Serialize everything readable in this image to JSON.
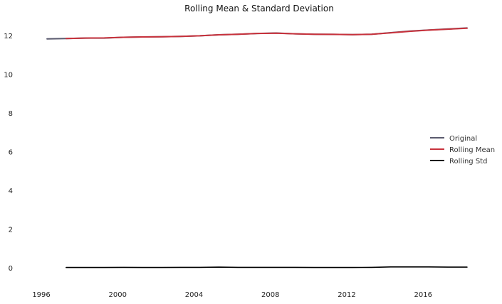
{
  "chart_data": {
    "type": "line",
    "title": "Rolling Mean & Standard Deviation",
    "xlabel": "",
    "ylabel": "",
    "xlim": [
      1995.7,
      2018.9
    ],
    "ylim": [
      -0.7,
      12.8
    ],
    "xticks": [
      1996,
      2000,
      2004,
      2008,
      2012,
      2016
    ],
    "xtick_labels": [
      "1996",
      "2000",
      "2004",
      "2008",
      "2012",
      "2016"
    ],
    "yticks": [
      0,
      2,
      4,
      6,
      8,
      10,
      12
    ],
    "ytick_labels": [
      "0",
      "2",
      "4",
      "6",
      "8",
      "10",
      "12"
    ],
    "grid": false,
    "legend_position": "center-right",
    "series": [
      {
        "name": "Original",
        "color": "#5a5a6e",
        "x": [
          1996.3,
          1997.3,
          1998.3,
          1999.3,
          2000.3,
          2001.3,
          2002.3,
          2003.3,
          2004.3,
          2005.3,
          2006.3,
          2007.3,
          2008.3,
          2009.3,
          2010.3,
          2011.3,
          2012.3,
          2013.3,
          2014.3,
          2015.3,
          2016.3,
          2017.3,
          2018.3
        ],
        "y": [
          11.82,
          11.84,
          11.86,
          11.86,
          11.9,
          11.92,
          11.93,
          11.95,
          11.98,
          12.03,
          12.06,
          12.1,
          12.12,
          12.08,
          12.06,
          12.05,
          12.04,
          12.06,
          12.14,
          12.22,
          12.28,
          12.33,
          12.38
        ]
      },
      {
        "name": "Rolling Mean",
        "color": "#c8323c",
        "x": [
          1997.3,
          1998.3,
          1999.3,
          2000.3,
          2001.3,
          2002.3,
          2003.3,
          2004.3,
          2005.3,
          2006.3,
          2007.3,
          2008.3,
          2009.3,
          2010.3,
          2011.3,
          2012.3,
          2013.3,
          2014.3,
          2015.3,
          2016.3,
          2017.3,
          2018.3
        ],
        "y": [
          11.84,
          11.86,
          11.87,
          11.9,
          11.92,
          11.93,
          11.95,
          11.98,
          12.03,
          12.06,
          12.1,
          12.11,
          12.08,
          12.06,
          12.05,
          12.04,
          12.06,
          12.13,
          12.21,
          12.27,
          12.32,
          12.37
        ]
      },
      {
        "name": "Rolling Std",
        "color": "#000000",
        "x": [
          1997.3,
          1998.3,
          1999.3,
          2000.3,
          2001.3,
          2002.3,
          2003.3,
          2004.3,
          2005.3,
          2006.3,
          2007.3,
          2008.3,
          2009.3,
          2010.3,
          2011.3,
          2012.3,
          2013.3,
          2014.3,
          2015.3,
          2016.3,
          2017.3,
          2018.3
        ],
        "y": [
          0.01,
          0.01,
          0.01,
          0.02,
          0.01,
          0.01,
          0.02,
          0.02,
          0.03,
          0.02,
          0.02,
          0.02,
          0.02,
          0.01,
          0.01,
          0.01,
          0.02,
          0.04,
          0.04,
          0.04,
          0.03,
          0.03
        ]
      }
    ]
  }
}
